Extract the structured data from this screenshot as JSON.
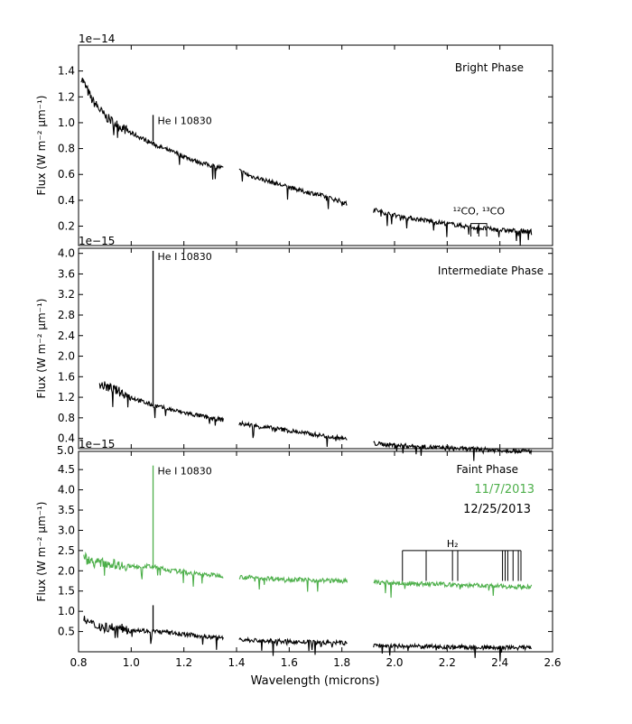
{
  "chart_data": {
    "type": "line",
    "xlabel": "Wavelength (microns)",
    "xlim": [
      0.8,
      2.6
    ],
    "x_ticks": [
      "0.8",
      "1.0",
      "1.2",
      "1.4",
      "1.6",
      "1.8",
      "2.0",
      "2.2",
      "2.4",
      "2.6"
    ],
    "panels": [
      {
        "id": "bright",
        "title": "Bright Phase",
        "ylabel": "Flux (W m⁻² μm⁻¹)",
        "offset_label": "1e−14",
        "ylim": [
          0.05,
          1.6
        ],
        "y_ticks": [
          0.2,
          0.4,
          0.6,
          0.8,
          1.0,
          1.2,
          1.4
        ],
        "y_tick_labels": [
          "0.2",
          "0.4",
          "0.6",
          "0.8",
          "1.0",
          "1.2",
          "1.4"
        ],
        "annotations": [
          {
            "text": "He I 10830",
            "x": 1.083,
            "y": 1.06
          },
          {
            "text": "¹²CO, ¹³CO",
            "x": 2.29,
            "y": 0.29
          }
        ],
        "series": [
          {
            "color": "#000000",
            "segments": [
              {
                "x": [
                  0.81,
                  0.85,
                  0.9,
                  0.95,
                  1.0,
                  1.05,
                  1.1,
                  1.15,
                  1.2,
                  1.25,
                  1.3,
                  1.35
                ],
                "y": [
                  1.35,
                  1.18,
                  1.05,
                  0.98,
                  0.92,
                  0.87,
                  0.82,
                  0.78,
                  0.74,
                  0.7,
                  0.67,
                  0.65
                ]
              },
              {
                "x": [
                  1.41,
                  1.45,
                  1.5,
                  1.55,
                  1.6,
                  1.65,
                  1.7,
                  1.75,
                  1.8,
                  1.82
                ],
                "y": [
                  0.63,
                  0.59,
                  0.56,
                  0.53,
                  0.5,
                  0.47,
                  0.45,
                  0.42,
                  0.39,
                  0.37
                ]
              },
              {
                "x": [
                  1.92,
                  1.95,
                  2.0,
                  2.05,
                  2.1,
                  2.15,
                  2.2,
                  2.25,
                  2.3,
                  2.35,
                  2.4,
                  2.45,
                  2.52
                ],
                "y": [
                  0.33,
                  0.31,
                  0.285,
                  0.265,
                  0.25,
                  0.235,
                  0.22,
                  0.205,
                  0.19,
                  0.18,
                  0.17,
                  0.165,
                  0.16
                ]
              }
            ]
          }
        ]
      },
      {
        "id": "intermediate",
        "title": "Intermediate Phase",
        "ylabel": "Flux (W m⁻² μm⁻¹)",
        "offset_label": "1e−15",
        "ylim": [
          0.2,
          4.1
        ],
        "y_ticks": [
          0.4,
          0.8,
          1.2,
          1.6,
          2.0,
          2.4,
          2.8,
          3.2,
          3.6,
          4.0
        ],
        "y_tick_labels": [
          "0.4",
          "0.8",
          "1.2",
          "1.6",
          "2.0",
          "2.4",
          "2.8",
          "3.2",
          "3.6",
          "4.0"
        ],
        "annotations": [
          {
            "text": "He I 10830",
            "x": 1.083,
            "y": 4.05
          }
        ],
        "series": [
          {
            "color": "#000000",
            "segments": [
              {
                "x": [
                  0.88,
                  0.92,
                  0.96,
                  1.0,
                  1.05,
                  1.1,
                  1.15,
                  1.2,
                  1.25,
                  1.3,
                  1.35
                ],
                "y": [
                  1.45,
                  1.38,
                  1.3,
                  1.2,
                  1.1,
                  1.02,
                  0.96,
                  0.9,
                  0.85,
                  0.8,
                  0.76
                ]
              },
              {
                "x": [
                  1.41,
                  1.45,
                  1.5,
                  1.55,
                  1.6,
                  1.65,
                  1.7,
                  1.75,
                  1.8,
                  1.82
                ],
                "y": [
                  0.69,
                  0.66,
                  0.62,
                  0.59,
                  0.55,
                  0.51,
                  0.47,
                  0.44,
                  0.4,
                  0.38
                ]
              },
              {
                "x": [
                  1.92,
                  2.0,
                  2.1,
                  2.2,
                  2.3,
                  2.4,
                  2.52
                ],
                "y": [
                  0.3,
                  0.27,
                  0.24,
                  0.21,
                  0.19,
                  0.17,
                  0.15
                ]
              }
            ]
          }
        ]
      },
      {
        "id": "faint",
        "title": "Faint Phase",
        "ylabel": "Flux (W m⁻² μm⁻¹)",
        "offset_label": "1e−15",
        "ylim": [
          0.0,
          4.95
        ],
        "y_ticks": [
          0.5,
          1.0,
          1.5,
          2.0,
          2.5,
          3.0,
          3.5,
          4.0,
          4.5
        ],
        "y_tick_labels": [
          "0.5",
          "1.0",
          "1.5",
          "2.0",
          "2.5",
          "3.0",
          "3.5",
          "4.0",
          "4.5"
        ],
        "top_label": "5.0",
        "annotations": [
          {
            "text": "He I 10830",
            "x": 1.083,
            "y": 4.6
          },
          {
            "text": "H₂",
            "x": 2.22,
            "y": 2.58
          }
        ],
        "legend": [
          {
            "label": "11/7/2013",
            "color": "#4daf4a"
          },
          {
            "label": "12/25/2013",
            "color": "#000000"
          }
        ],
        "series": [
          {
            "name": "11/7/2013",
            "color": "#4daf4a",
            "segments": [
              {
                "x": [
                  0.82,
                  0.86,
                  0.9,
                  0.95,
                  1.0,
                  1.05,
                  1.1,
                  1.15,
                  1.2,
                  1.25,
                  1.3,
                  1.35
                ],
                "y": [
                  2.35,
                  2.2,
                  2.2,
                  2.15,
                  2.1,
                  2.12,
                  2.08,
                  2.0,
                  1.98,
                  1.92,
                  1.9,
                  1.88
                ]
              },
              {
                "x": [
                  1.41,
                  1.5,
                  1.6,
                  1.7,
                  1.8,
                  1.82
                ],
                "y": [
                  1.85,
                  1.82,
                  1.79,
                  1.77,
                  1.75,
                  1.74
                ]
              },
              {
                "x": [
                  1.92,
                  2.0,
                  2.1,
                  2.2,
                  2.3,
                  2.4,
                  2.52
                ],
                "y": [
                  1.72,
                  1.7,
                  1.68,
                  1.66,
                  1.64,
                  1.62,
                  1.6
                ]
              }
            ]
          },
          {
            "name": "12/25/2013",
            "color": "#000000",
            "segments": [
              {
                "x": [
                  0.82,
                  0.86,
                  0.9,
                  0.95,
                  1.0,
                  1.05,
                  1.1,
                  1.15,
                  1.2,
                  1.25,
                  1.3,
                  1.35
                ],
                "y": [
                  0.8,
                  0.65,
                  0.62,
                  0.58,
                  0.55,
                  0.52,
                  0.5,
                  0.47,
                  0.43,
                  0.4,
                  0.37,
                  0.35
                ]
              },
              {
                "x": [
                  1.41,
                  1.5,
                  1.6,
                  1.7,
                  1.8,
                  1.82
                ],
                "y": [
                  0.3,
                  0.27,
                  0.25,
                  0.23,
                  0.22,
                  0.21
                ]
              },
              {
                "x": [
                  1.92,
                  2.0,
                  2.1,
                  2.2,
                  2.3,
                  2.4,
                  2.52
                ],
                "y": [
                  0.16,
                  0.14,
                  0.13,
                  0.12,
                  0.11,
                  0.1,
                  0.1
                ]
              }
            ]
          }
        ]
      }
    ]
  }
}
